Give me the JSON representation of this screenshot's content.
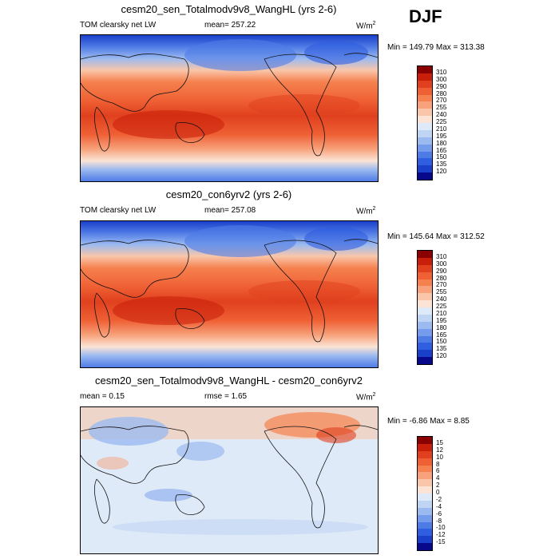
{
  "season": "DJF",
  "panels": [
    {
      "title": "cesm20_sen_Totalmodv9v8_WangHL (yrs 2-6)",
      "left_label": "TOM clearsky net LW",
      "center_label": "mean= 257.22",
      "units": "W/m",
      "units_sup": "2",
      "minmax": "Min = 149.79 Max = 313.38",
      "levels": [
        "310",
        "300",
        "290",
        "280",
        "270",
        "255",
        "240",
        "225",
        "210",
        "195",
        "180",
        "165",
        "150",
        "135",
        "120"
      ],
      "colors": [
        "#8b0000",
        "#c81e0a",
        "#e0401e",
        "#ef6034",
        "#f5814f",
        "#f7a27c",
        "#f9c6aa",
        "#fbe4d6",
        "#dfeaf8",
        "#c0d4f4",
        "#9bbaf0",
        "#759bec",
        "#4f7be6",
        "#2f5ee0",
        "#1a3fc9",
        "#08088c"
      ]
    },
    {
      "title": "cesm20_con6yrv2 (yrs 2-6)",
      "left_label": "TOM clearsky net LW",
      "center_label": "mean= 257.08",
      "units": "W/m",
      "units_sup": "2",
      "minmax": "Min = 145.64 Max = 312.52",
      "levels": [
        "310",
        "300",
        "290",
        "280",
        "270",
        "255",
        "240",
        "225",
        "210",
        "195",
        "180",
        "165",
        "150",
        "135",
        "120"
      ],
      "colors": [
        "#8b0000",
        "#c81e0a",
        "#e0401e",
        "#ef6034",
        "#f5814f",
        "#f7a27c",
        "#f9c6aa",
        "#fbe4d6",
        "#dfeaf8",
        "#c0d4f4",
        "#9bbaf0",
        "#759bec",
        "#4f7be6",
        "#2f5ee0",
        "#1a3fc9",
        "#08088c"
      ]
    },
    {
      "title": "cesm20_sen_Totalmodv9v8_WangHL - cesm20_con6yrv2",
      "left_label": "mean =   0.15",
      "center_label": "rmse =   1.65",
      "units": "W/m",
      "units_sup": "2",
      "minmax": "Min =  -6.86 Max =   8.85",
      "levels": [
        "15",
        "12",
        "10",
        "8",
        "6",
        "4",
        "2",
        "0",
        "-2",
        "-4",
        "-6",
        "-8",
        "-10",
        "-12",
        "-15"
      ],
      "colors": [
        "#8b0000",
        "#c81e0a",
        "#e0401e",
        "#ef6034",
        "#f5814f",
        "#f7a27c",
        "#f9c6aa",
        "#fbe4d6",
        "#dfeaf8",
        "#c0d4f4",
        "#9bbaf0",
        "#759bec",
        "#4f7be6",
        "#2f5ee0",
        "#1a3fc9",
        "#08088c"
      ]
    }
  ]
}
